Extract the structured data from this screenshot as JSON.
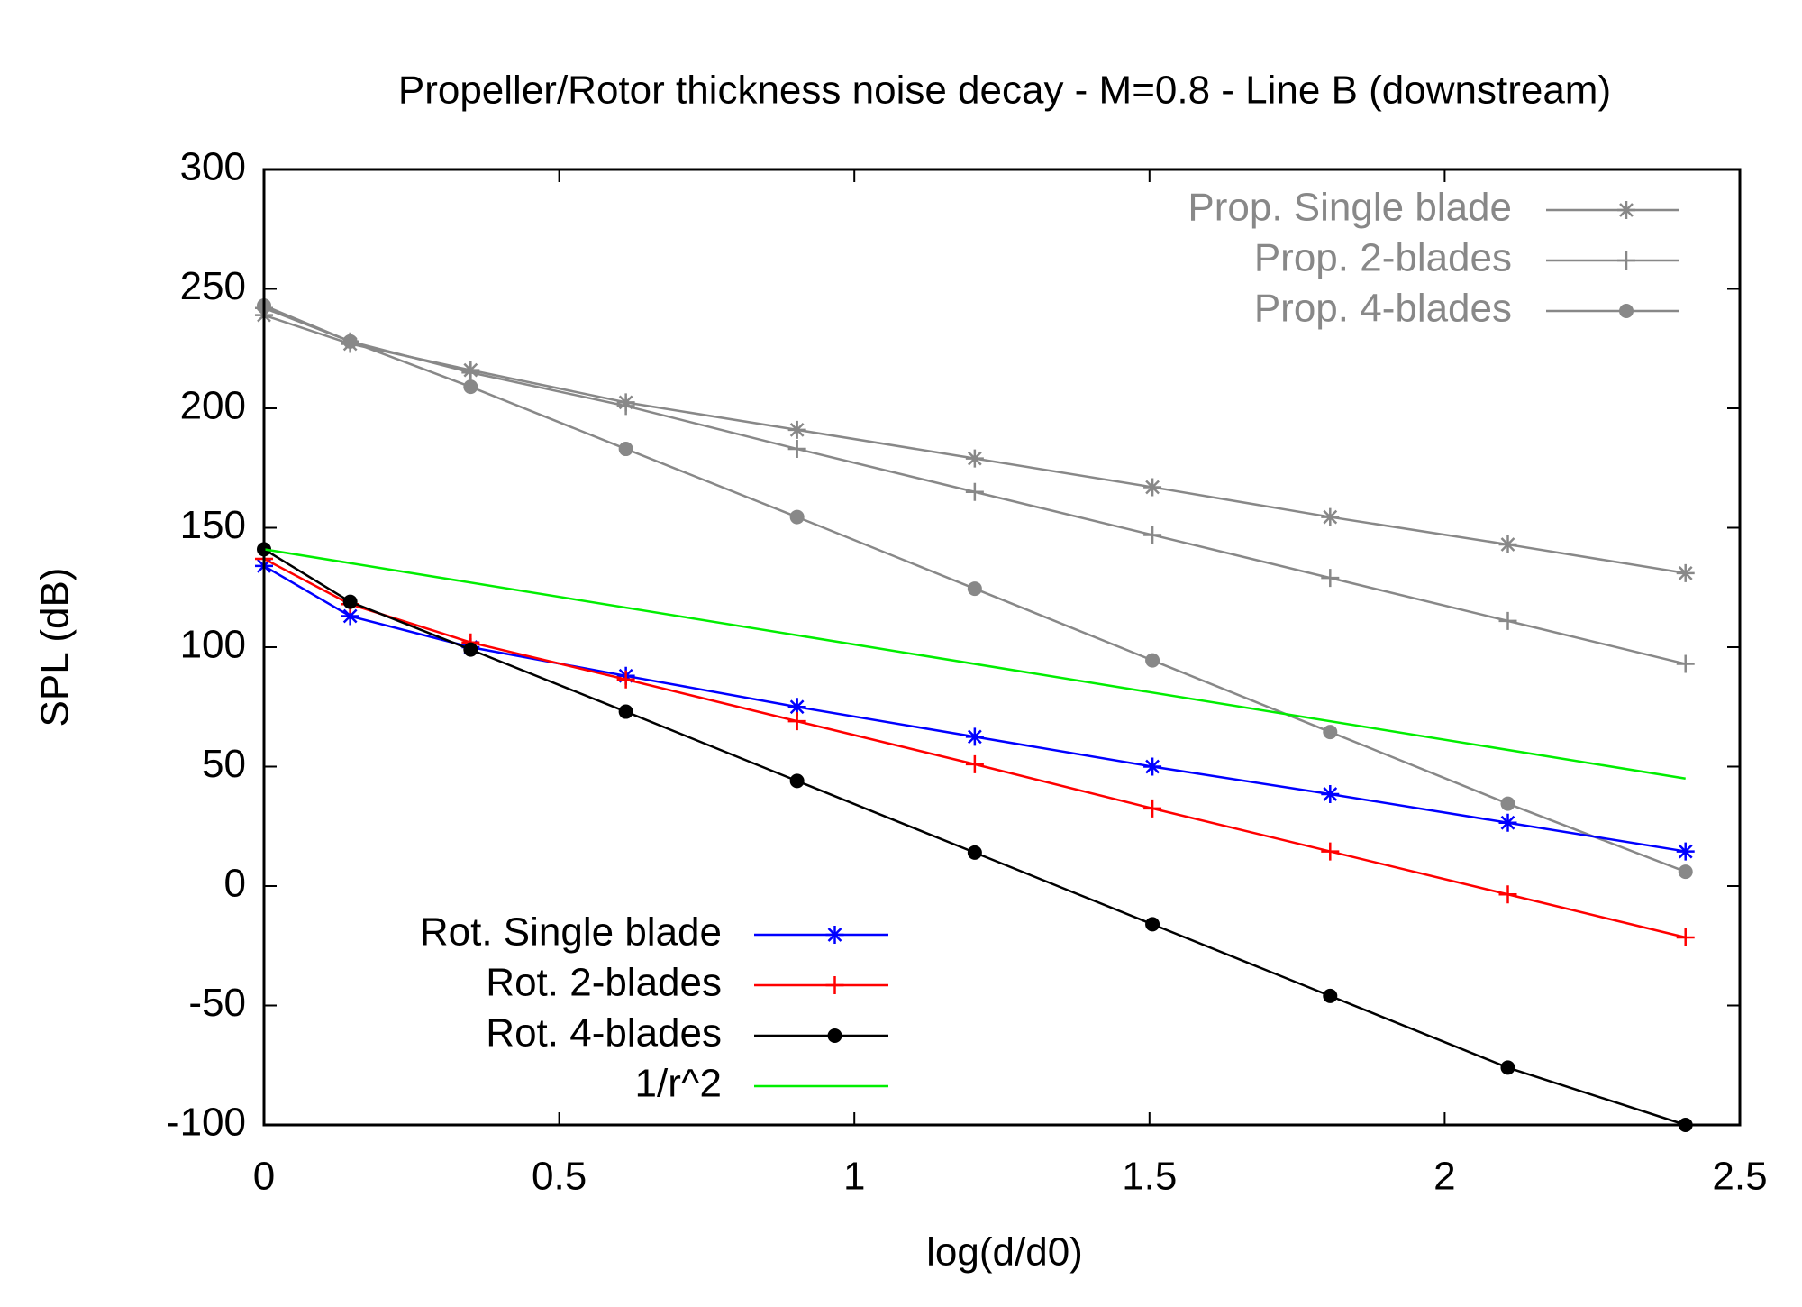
{
  "chart_data": {
    "type": "line",
    "title": "Propeller/Rotor thickness noise decay - M=0.8 - Line B (downstream)",
    "x_label": "log(d/d0)",
    "y_label": "SPL (dB)",
    "x": [
      0,
      0.146,
      0.35,
      0.613,
      0.903,
      1.204,
      1.505,
      1.806,
      2.107,
      2.408
    ],
    "series": [
      {
        "name": "Prop. Single blade",
        "color": "#888888",
        "marker": "star",
        "legend": "top-right",
        "values": [
          239,
          227,
          216,
          202.5,
          191,
          179,
          167,
          154.5,
          143,
          131
        ]
      },
      {
        "name": "Prop. 2-blades",
        "color": "#888888",
        "marker": "plus",
        "legend": "top-right",
        "values": [
          242,
          228,
          215,
          201,
          183,
          165,
          147,
          129,
          111,
          93
        ]
      },
      {
        "name": "Prop. 4-blades",
        "color": "#888888",
        "marker": "circle",
        "legend": "top-right",
        "values": [
          243,
          228,
          209,
          183,
          154.5,
          124.5,
          94.5,
          64.5,
          34.5,
          6
        ]
      },
      {
        "name": "Rot. Single blade",
        "color": "#0000ff",
        "marker": "star",
        "legend": "bottom-left",
        "values": [
          134,
          113,
          100,
          88,
          75,
          62.5,
          50,
          38.5,
          26.5,
          14.5
        ]
      },
      {
        "name": "Rot. 2-blades",
        "color": "#ff0000",
        "marker": "plus",
        "legend": "bottom-left",
        "values": [
          137,
          118,
          102,
          86.5,
          69,
          51,
          32.5,
          14.5,
          -3.5,
          -21.5
        ]
      },
      {
        "name": "Rot. 4-blades",
        "color": "#000000",
        "marker": "circle",
        "legend": "bottom-left",
        "values": [
          141,
          119,
          99,
          73,
          44,
          14,
          -16,
          -46,
          -76,
          -100
        ]
      },
      {
        "name": "1/r^2",
        "color": "#00ee00",
        "marker": "none",
        "legend": "bottom-left",
        "x": [
          0,
          2.408
        ],
        "values": [
          141,
          45
        ]
      }
    ],
    "xlim": [
      0,
      2.5
    ],
    "xticks": [
      0,
      0.5,
      1,
      1.5,
      2,
      2.5
    ],
    "ylim": [
      -100,
      300
    ],
    "yticks": [
      -100,
      -50,
      0,
      50,
      100,
      150,
      200,
      250,
      300
    ],
    "grid": false
  }
}
